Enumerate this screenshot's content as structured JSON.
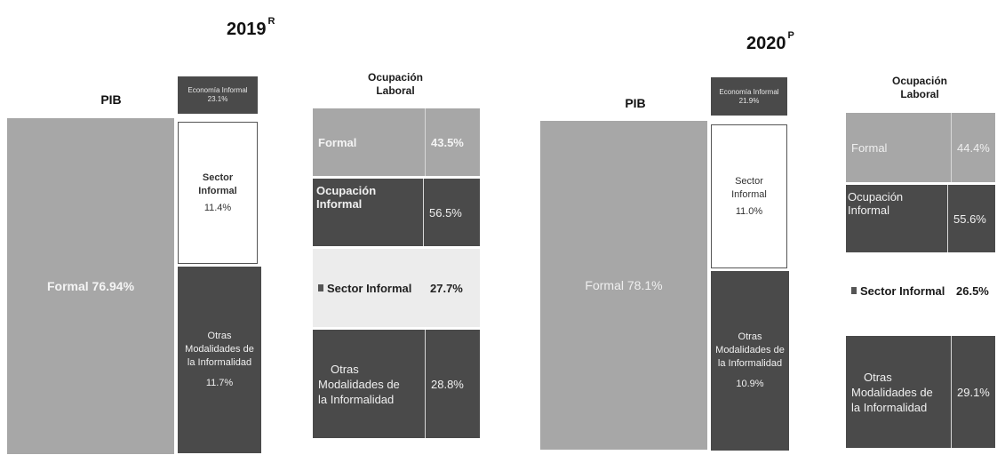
{
  "colors": {
    "formal_grey": "#a7a7a7",
    "informal_dark": "#4a4a4a",
    "sector_informal_white": "#ffffff",
    "sector_informal_light": "#ececec"
  },
  "chart_data": [
    {
      "type": "bar",
      "title": "2019",
      "title_superscript": "R",
      "pib": {
        "label": "PIB",
        "header": {
          "line1": "Economía Informal",
          "line2": "23.1%"
        },
        "formal": {
          "text": "Formal 76.94%",
          "value": 76.94
        },
        "sector_informal": {
          "line1": "Sector",
          "line2": "Informal",
          "line3": "11.4%",
          "value": 11.4
        },
        "otras": {
          "line1": "Otras",
          "line2": "Modalidades de",
          "line3": "la Informalidad",
          "line4": "11.7%",
          "value": 11.7
        }
      },
      "ocupacion": {
        "label_line1": "Ocupación",
        "label_line2": "Laboral",
        "formal": {
          "name": "Formal",
          "value_text": "43.5%",
          "value": 43.5
        },
        "ocupacion_informal": {
          "name": "Ocupación Informal",
          "value_text": "56.5%",
          "value": 56.5
        },
        "sector_informal": {
          "name": "Sector Informal",
          "value_text": "27.7%",
          "value": 27.7
        },
        "otras": {
          "line1": "Otras",
          "line2": "Modalidades de",
          "line3": "la Informalidad",
          "value_text": "28.8%",
          "value": 28.8
        }
      }
    },
    {
      "type": "bar",
      "title": "2020",
      "title_superscript": "P",
      "pib": {
        "label": "PIB",
        "header": {
          "line1": "Economía Informal",
          "line2": "21.9%"
        },
        "formal": {
          "text": "Formal 78.1%",
          "value": 78.1
        },
        "sector_informal": {
          "line1": "Sector",
          "line2": "Informal",
          "line3": "11.0%",
          "value": 11.0
        },
        "otras": {
          "line1": "Otras",
          "line2": "Modalidades de",
          "line3": "la Informalidad",
          "line4": "10.9%",
          "value": 10.9
        }
      },
      "ocupacion": {
        "label_line1": "Ocupación",
        "label_line2": "Laboral",
        "formal": {
          "name": "Formal",
          "value_text": "44.4%",
          "value": 44.4
        },
        "ocupacion_informal": {
          "name": "Ocupación Informal",
          "value_text": "55.6%",
          "value": 55.6
        },
        "sector_informal": {
          "name": "Sector Informal",
          "value_text": "26.5%",
          "value": 26.5
        },
        "otras": {
          "line1": "Otras",
          "line2": "Modalidades de",
          "line3": "la Informalidad",
          "value_text": "29.1%",
          "value": 29.1
        }
      }
    }
  ]
}
